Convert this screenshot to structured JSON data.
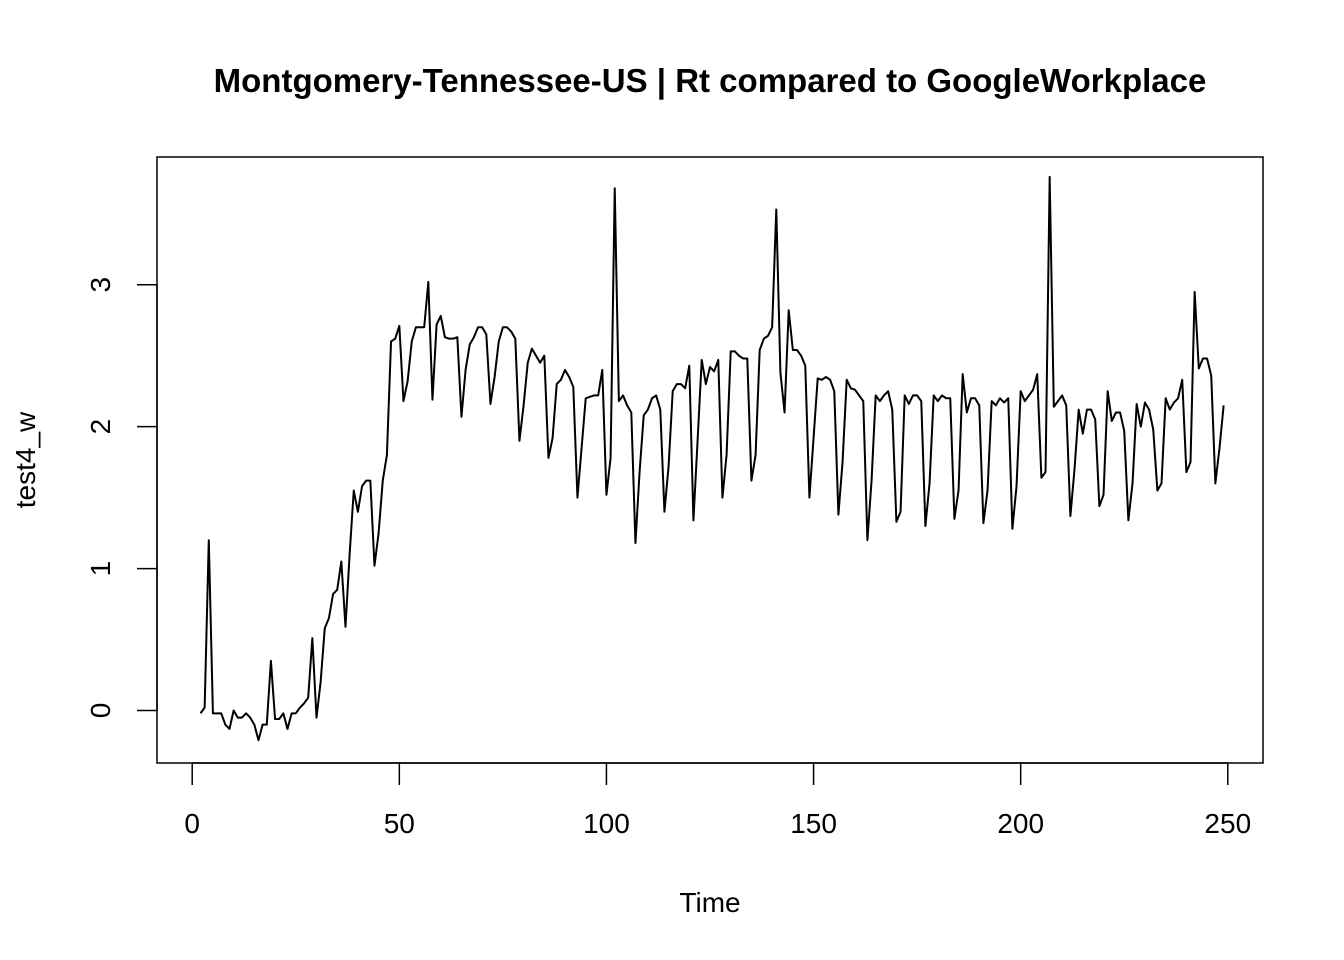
{
  "chart_data": {
    "type": "line",
    "title": "Montgomery-Tennessee-US | Rt compared to GoogleWorkplace",
    "xlabel": "Time",
    "ylabel": "test4_w",
    "xlim": [
      -8.5,
      258.5
    ],
    "ylim": [
      -0.37,
      3.9
    ],
    "x_ticks": [
      0,
      50,
      100,
      150,
      200,
      250
    ],
    "x_tick_labels": [
      "0",
      "50",
      "100",
      "150",
      "200",
      "250"
    ],
    "y_ticks": [
      0,
      1,
      2,
      3
    ],
    "y_tick_labels": [
      "0",
      "1",
      "2",
      "3"
    ],
    "grid": false,
    "legend": "none",
    "line_color": "#000000",
    "series": [
      {
        "x_start": 2,
        "values": [
          -0.02,
          0.02,
          1.2,
          -0.02,
          -0.02,
          -0.02,
          -0.1,
          -0.13,
          0.0,
          -0.05,
          -0.05,
          -0.02,
          -0.05,
          -0.1,
          -0.21,
          -0.1,
          -0.1,
          0.35,
          -0.06,
          -0.06,
          -0.02,
          -0.13,
          -0.02,
          -0.02,
          0.02,
          0.05,
          0.09,
          0.51,
          -0.05,
          0.2,
          0.58,
          0.65,
          0.82,
          0.85,
          1.05,
          0.59,
          1.1,
          1.55,
          1.4,
          1.58,
          1.62,
          1.62,
          1.02,
          1.25,
          1.62,
          1.8,
          2.6,
          2.62,
          2.71,
          2.18,
          2.32,
          2.6,
          2.7,
          2.7,
          2.7,
          3.02,
          2.19,
          2.72,
          2.78,
          2.63,
          2.62,
          2.62,
          2.63,
          2.07,
          2.4,
          2.58,
          2.63,
          2.7,
          2.7,
          2.65,
          2.16,
          2.35,
          2.6,
          2.7,
          2.7,
          2.67,
          2.62,
          1.9,
          2.15,
          2.45,
          2.55,
          2.5,
          2.45,
          2.5,
          1.78,
          1.92,
          2.3,
          2.33,
          2.4,
          2.35,
          2.28,
          1.5,
          1.85,
          2.2,
          2.21,
          2.22,
          2.22,
          2.4,
          1.52,
          1.78,
          3.68,
          2.18,
          2.22,
          2.15,
          2.1,
          1.18,
          1.68,
          2.08,
          2.12,
          2.2,
          2.22,
          2.12,
          1.4,
          1.72,
          2.25,
          2.3,
          2.3,
          2.27,
          2.43,
          1.34,
          1.9,
          2.47,
          2.3,
          2.42,
          2.39,
          2.47,
          1.5,
          1.8,
          2.53,
          2.53,
          2.5,
          2.48,
          2.48,
          1.62,
          1.8,
          2.54,
          2.62,
          2.64,
          2.7,
          3.53,
          2.38,
          2.1,
          2.82,
          2.54,
          2.54,
          2.5,
          2.43,
          1.5,
          1.92,
          2.34,
          2.33,
          2.35,
          2.33,
          2.25,
          1.38,
          1.75,
          2.33,
          2.27,
          2.26,
          2.22,
          2.18,
          1.2,
          1.62,
          2.22,
          2.18,
          2.22,
          2.25,
          2.12,
          1.33,
          1.4,
          2.22,
          2.16,
          2.22,
          2.22,
          2.18,
          1.3,
          1.6,
          2.22,
          2.18,
          2.22,
          2.2,
          2.2,
          1.35,
          1.55,
          2.37,
          2.1,
          2.2,
          2.2,
          2.15,
          1.32,
          1.55,
          2.18,
          2.15,
          2.2,
          2.17,
          2.2,
          1.28,
          1.58,
          2.25,
          2.18,
          2.22,
          2.26,
          2.37,
          1.64,
          1.68,
          3.76,
          2.14,
          2.18,
          2.22,
          2.15,
          1.37,
          1.7,
          2.12,
          1.95,
          2.12,
          2.12,
          2.05,
          1.44,
          1.52,
          2.25,
          2.04,
          2.1,
          2.1,
          1.97,
          1.34,
          1.6,
          2.16,
          2.0,
          2.17,
          2.12,
          1.98,
          1.55,
          1.6,
          2.2,
          2.12,
          2.17,
          2.2,
          2.33,
          1.68,
          1.75,
          2.95,
          2.41,
          2.48,
          2.48,
          2.36,
          1.6,
          1.85,
          2.15
        ]
      }
    ]
  }
}
